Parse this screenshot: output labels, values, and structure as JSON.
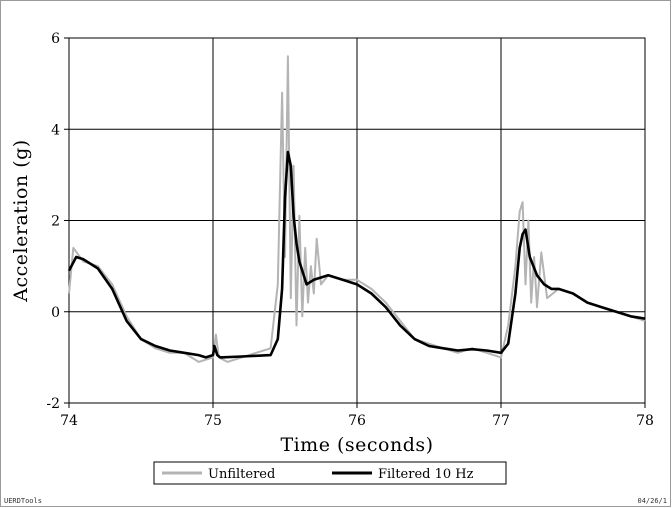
{
  "footer": {
    "left": "UERDTools",
    "right": "04/26/1"
  },
  "chart_data": {
    "type": "line",
    "xlabel": "Time (seconds)",
    "ylabel": "Acceleration (g)",
    "xlim": [
      74,
      78
    ],
    "ylim": [
      -2,
      6
    ],
    "xticks": [
      74,
      75,
      76,
      77,
      78
    ],
    "yticks": [
      -2,
      0,
      2,
      4,
      6
    ],
    "grid": true,
    "legend_position": "bottom-center",
    "series": [
      {
        "name": "Unfiltered",
        "color": "#b4b4b4",
        "x": [
          74.0,
          74.03,
          74.1,
          74.2,
          74.3,
          74.4,
          74.5,
          74.6,
          74.7,
          74.8,
          74.9,
          75.0,
          75.02,
          75.04,
          75.1,
          75.2,
          75.3,
          75.4,
          75.45,
          75.48,
          75.5,
          75.52,
          75.54,
          75.56,
          75.58,
          75.6,
          75.62,
          75.64,
          75.66,
          75.68,
          75.7,
          75.72,
          75.75,
          75.8,
          75.9,
          76.0,
          76.1,
          76.2,
          76.3,
          76.4,
          76.5,
          76.6,
          76.7,
          76.8,
          76.9,
          77.0,
          77.05,
          77.1,
          77.13,
          77.15,
          77.17,
          77.19,
          77.21,
          77.23,
          77.25,
          77.28,
          77.32,
          77.4,
          77.5,
          77.6,
          77.7,
          77.8,
          77.9,
          78.0
        ],
        "y": [
          0.4,
          1.4,
          1.1,
          1.0,
          0.6,
          -0.1,
          -0.6,
          -0.8,
          -0.9,
          -0.9,
          -1.1,
          -1.0,
          -0.5,
          -1.0,
          -1.1,
          -1.0,
          -0.9,
          -0.8,
          0.6,
          4.8,
          1.2,
          5.6,
          0.3,
          3.2,
          -0.3,
          2.1,
          -0.1,
          1.4,
          0.2,
          1.0,
          0.4,
          1.6,
          0.6,
          0.8,
          0.7,
          0.7,
          0.5,
          0.2,
          -0.2,
          -0.6,
          -0.7,
          -0.8,
          -0.9,
          -0.8,
          -0.9,
          -1.0,
          -0.3,
          1.0,
          2.2,
          2.4,
          0.6,
          2.0,
          0.2,
          1.2,
          0.1,
          1.3,
          0.3,
          0.5,
          0.4,
          0.2,
          0.1,
          0.0,
          -0.1,
          -0.2
        ]
      },
      {
        "name": "Filtered 10 Hz",
        "color": "#000000",
        "x": [
          74.0,
          74.05,
          74.1,
          74.2,
          74.3,
          74.4,
          74.5,
          74.6,
          74.7,
          74.8,
          74.9,
          74.95,
          75.0,
          75.01,
          75.03,
          75.05,
          75.2,
          75.4,
          75.45,
          75.48,
          75.5,
          75.52,
          75.54,
          75.56,
          75.58,
          75.6,
          75.65,
          75.7,
          75.8,
          75.9,
          76.0,
          76.1,
          76.2,
          76.3,
          76.4,
          76.5,
          76.6,
          76.7,
          76.8,
          76.9,
          77.0,
          77.05,
          77.1,
          77.13,
          77.15,
          77.17,
          77.2,
          77.25,
          77.3,
          77.35,
          77.4,
          77.5,
          77.6,
          77.7,
          77.8,
          77.9,
          78.0
        ],
        "y": [
          0.9,
          1.2,
          1.15,
          0.95,
          0.5,
          -0.2,
          -0.6,
          -0.75,
          -0.85,
          -0.9,
          -0.95,
          -1.0,
          -0.95,
          -0.75,
          -0.95,
          -1.0,
          -0.98,
          -0.95,
          -0.6,
          0.5,
          2.5,
          3.5,
          3.2,
          2.1,
          1.5,
          1.1,
          0.6,
          0.7,
          0.8,
          0.7,
          0.6,
          0.4,
          0.1,
          -0.3,
          -0.6,
          -0.75,
          -0.8,
          -0.85,
          -0.82,
          -0.85,
          -0.9,
          -0.7,
          0.4,
          1.4,
          1.7,
          1.8,
          1.2,
          0.8,
          0.6,
          0.5,
          0.5,
          0.4,
          0.2,
          0.1,
          0.0,
          -0.1,
          -0.15
        ]
      }
    ]
  }
}
